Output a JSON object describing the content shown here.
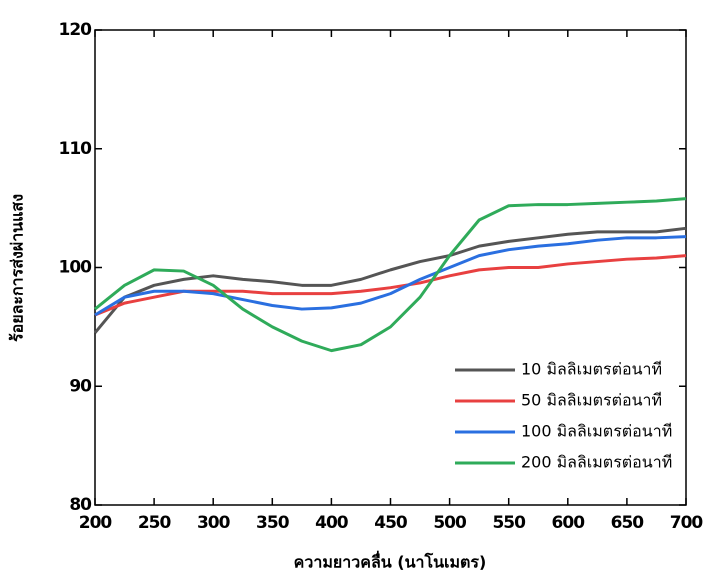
{
  "chart_data": {
    "type": "line",
    "x_label": "ความยาวคลื่น (นาโนเมตร)",
    "y_label": "ร้อยละการส่งผ่านแสง",
    "x": [
      200,
      225,
      250,
      275,
      300,
      325,
      350,
      375,
      400,
      425,
      450,
      475,
      500,
      525,
      550,
      575,
      600,
      625,
      650,
      675,
      700
    ],
    "series": [
      {
        "name": "10 มิลลิเมตรต่อนาที",
        "color": "#555555",
        "values": [
          94.5,
          97.5,
          98.5,
          99,
          99.3,
          99,
          98.8,
          98.5,
          98.5,
          99,
          99.8,
          100.5,
          101,
          101.8,
          102.2,
          102.5,
          102.8,
          103,
          103,
          103,
          103.3
        ]
      },
      {
        "name": "50 มิลลิเมตรต่อนาที",
        "color": "#e84040",
        "values": [
          96,
          97,
          97.5,
          98,
          98,
          98,
          97.8,
          97.8,
          97.8,
          98,
          98.3,
          98.7,
          99.3,
          99.8,
          100,
          100,
          100.3,
          100.5,
          100.7,
          100.8,
          101
        ]
      },
      {
        "name": "100 มิลลิเมตรต่อนาที",
        "color": "#2a6fe0",
        "values": [
          96,
          97.5,
          98,
          98,
          97.8,
          97.3,
          96.8,
          96.5,
          96.6,
          97,
          97.8,
          99,
          100,
          101,
          101.5,
          101.8,
          102,
          102.3,
          102.5,
          102.5,
          102.6
        ]
      },
      {
        "name": "200 มิลลิเมตรต่อนาที",
        "color": "#2fab5a",
        "values": [
          96.5,
          98.5,
          99.8,
          99.7,
          98.5,
          96.5,
          95,
          93.8,
          93,
          93.5,
          95,
          97.5,
          101,
          104,
          105.2,
          105.3,
          105.3,
          105.4,
          105.5,
          105.6,
          105.8
        ]
      }
    ],
    "xlim": [
      200,
      700
    ],
    "xticks": [
      200,
      250,
      300,
      350,
      400,
      450,
      500,
      550,
      600,
      650,
      700
    ],
    "ylim": [
      80,
      120
    ],
    "yticks": [
      80,
      90,
      100,
      110,
      120
    ],
    "legend": "lower right"
  }
}
